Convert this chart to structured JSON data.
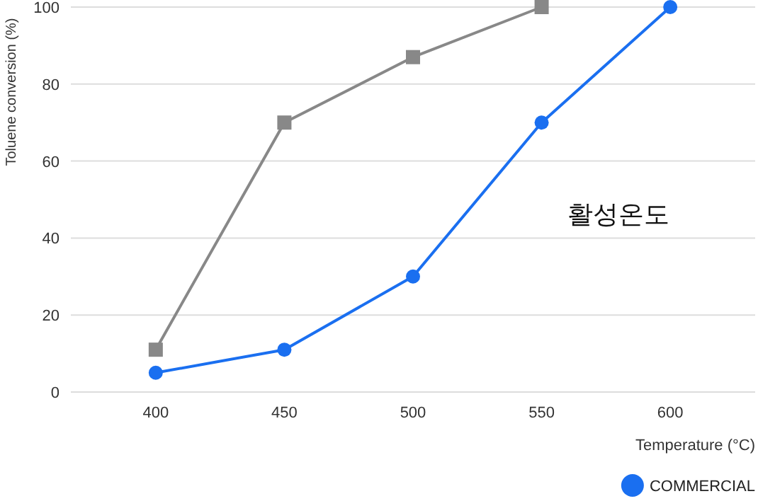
{
  "chart_data": {
    "type": "line",
    "xlabel": "Temperature (°C)",
    "ylabel": "Toluene conversion (%)",
    "categories": [
      "400",
      "450",
      "500",
      "550",
      "600"
    ],
    "series": [
      {
        "color": "#888888",
        "marker": "square",
        "values": [
          11,
          70,
          87,
          100,
          null
        ]
      },
      {
        "name": "COMMERCIAL",
        "color": "#1a6ff0",
        "marker": "circle",
        "values": [
          5,
          11,
          30,
          70,
          100
        ]
      }
    ],
    "ylim": [
      0,
      100
    ],
    "yticks": [
      0,
      20,
      40,
      60,
      80,
      100
    ],
    "grid": "y",
    "legend": "bottom right",
    "line_style": "solid",
    "annotations": [
      "활성온도"
    ]
  }
}
